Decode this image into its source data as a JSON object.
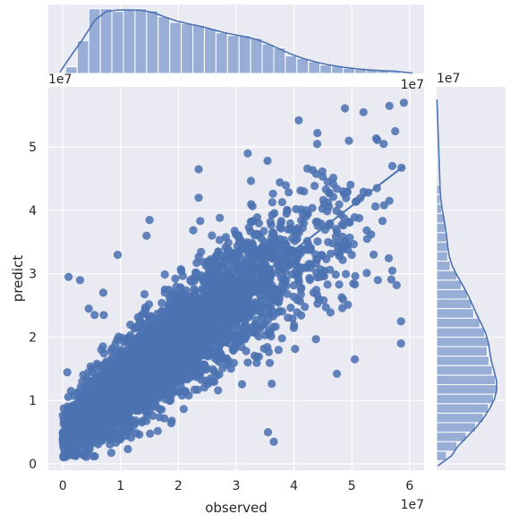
{
  "chart_data": {
    "type": "scatter",
    "subtype": "jointplot",
    "title": "",
    "xlabel": "observed",
    "ylabel": "predict",
    "x_offset_label": "1e7",
    "y_offset_label": "1e7",
    "marg_x_offset_label": "1e7",
    "marg_y_offset_label": "1e7",
    "xlim": [
      -0.25,
      6.25
    ],
    "ylim": [
      -0.1,
      5.95
    ],
    "x_ticks": [
      0,
      1,
      2,
      3,
      4,
      5,
      6
    ],
    "x_tick_labels": [
      "0",
      "1",
      "2",
      "3",
      "4",
      "5",
      "6"
    ],
    "y_ticks": [
      0,
      1,
      2,
      3,
      4,
      5
    ],
    "y_tick_labels": [
      "0",
      "1",
      "2",
      "3",
      "4",
      "5"
    ],
    "grid": true,
    "regression_line": {
      "x": [
        0.1,
        5.9
      ],
      "y": [
        0.65,
        4.7
      ]
    },
    "scatter_clusters": [
      {
        "x": 0.45,
        "y": 0.75,
        "sx": 0.22,
        "sy": 0.25,
        "n": 700,
        "rho": 0.5
      },
      {
        "x": 1.0,
        "y": 1.15,
        "sx": 0.35,
        "sy": 0.35,
        "n": 1100,
        "rho": 0.6
      },
      {
        "x": 1.6,
        "y": 1.6,
        "sx": 0.45,
        "sy": 0.45,
        "n": 1100,
        "rho": 0.6
      },
      {
        "x": 2.3,
        "y": 2.15,
        "sx": 0.5,
        "sy": 0.5,
        "n": 800,
        "rho": 0.55
      },
      {
        "x": 3.0,
        "y": 2.65,
        "sx": 0.5,
        "sy": 0.55,
        "n": 450,
        "rho": 0.45
      },
      {
        "x": 3.8,
        "y": 3.2,
        "sx": 0.55,
        "sy": 0.6,
        "n": 220,
        "rho": 0.35
      },
      {
        "x": 4.7,
        "y": 3.7,
        "sx": 0.55,
        "sy": 0.7,
        "n": 110,
        "rho": 0.25
      }
    ],
    "outliers": [
      [
        0.1,
        2.95
      ],
      [
        0.3,
        2.9
      ],
      [
        0.55,
        2.35
      ],
      [
        0.95,
        3.3
      ],
      [
        1.45,
        3.6
      ],
      [
        1.5,
        3.85
      ],
      [
        2.35,
        4.2
      ],
      [
        3.55,
        0.5
      ],
      [
        3.65,
        0.35
      ],
      [
        5.05,
        1.65
      ],
      [
        5.65,
        4.15
      ],
      [
        5.7,
        4.7
      ],
      [
        5.75,
        5.25
      ],
      [
        5.85,
        1.9
      ],
      [
        5.85,
        2.25
      ],
      [
        5.2,
        5.55
      ],
      [
        5.65,
        5.65
      ],
      [
        5.9,
        5.7
      ],
      [
        4.95,
        5.1
      ],
      [
        5.55,
        5.05
      ],
      [
        5.7,
        3.05
      ],
      [
        5.0,
        3.3
      ],
      [
        5.45,
        2.9
      ],
      [
        4.15,
        3.95
      ],
      [
        3.2,
        4.9
      ],
      [
        2.35,
        4.65
      ],
      [
        4.85,
        4.3
      ],
      [
        4.4,
        5.05
      ],
      [
        0.45,
        2.45
      ],
      [
        0.7,
        2.7
      ]
    ],
    "marginal_x": {
      "bins_start": 0.05,
      "bin_width": 0.2,
      "counts": [
        0.1,
        0.5,
        0.99,
        0.99,
        0.95,
        0.97,
        0.99,
        0.96,
        0.87,
        0.78,
        0.76,
        0.74,
        0.69,
        0.62,
        0.58,
        0.58,
        0.54,
        0.45,
        0.39,
        0.27,
        0.23,
        0.18,
        0.13,
        0.11,
        0.08,
        0.06,
        0.05,
        0.04,
        0.03
      ]
    },
    "marginal_y": {
      "bins_start": 0.05,
      "bin_width": 0.15,
      "counts": [
        0.16,
        0.33,
        0.48,
        0.63,
        0.76,
        0.84,
        0.92,
        0.99,
        0.95,
        0.9,
        0.85,
        0.82,
        0.84,
        0.78,
        0.7,
        0.6,
        0.57,
        0.5,
        0.4,
        0.33,
        0.22,
        0.18,
        0.18,
        0.16,
        0.14,
        0.12,
        0.08,
        0.06,
        0.05
      ]
    },
    "colors": {
      "points": "#4c72b0",
      "bars": "#99aed6",
      "bar_edge": "#ffffff",
      "kde": "#4c72b0",
      "panel_bg": "#eaeaf2",
      "grid": "#ffffff"
    }
  }
}
